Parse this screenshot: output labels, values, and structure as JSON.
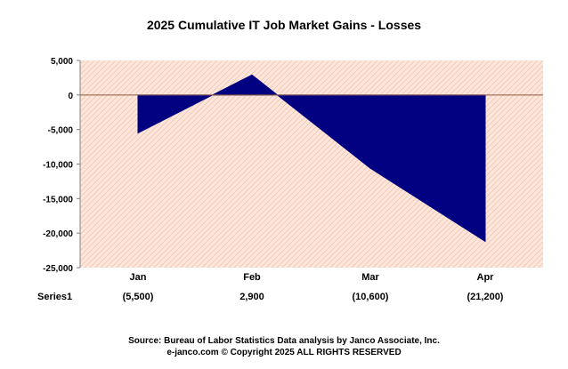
{
  "chart_data": {
    "type": "area",
    "title": "2025 Cumulative IT Job Market  Gains - Losses",
    "categories": [
      "Jan",
      "Feb",
      "Mar",
      "Apr"
    ],
    "series": [
      {
        "name": "Series1",
        "values": [
          -5500,
          2900,
          -10600,
          -21200
        ]
      }
    ],
    "table_values": [
      "(5,500)",
      "2,900",
      "(10,600)",
      "(21,200)"
    ],
    "ylim": [
      -25000,
      5000
    ],
    "yticks": [
      5000,
      0,
      -5000,
      -10000,
      -15000,
      -20000,
      -25000
    ],
    "ytick_labels": [
      "5,000",
      "0",
      "-5,000",
      "-10,000",
      "-15,000",
      "-20,000",
      "-25,000"
    ],
    "grid": false,
    "xlabel": "",
    "ylabel": "",
    "colors": {
      "fill": "#000080",
      "plot_background": "#fde7dc",
      "hatch": "#f3c2aa",
      "zero_line": "#8a5a44"
    }
  },
  "footer": {
    "source": "Source: Bureau of Labor Statistics Data  analysis by Janco Associate, Inc.",
    "copyright": "e-janco.com  © Copyright 2025 ALL RIGHTS RESERVED"
  }
}
